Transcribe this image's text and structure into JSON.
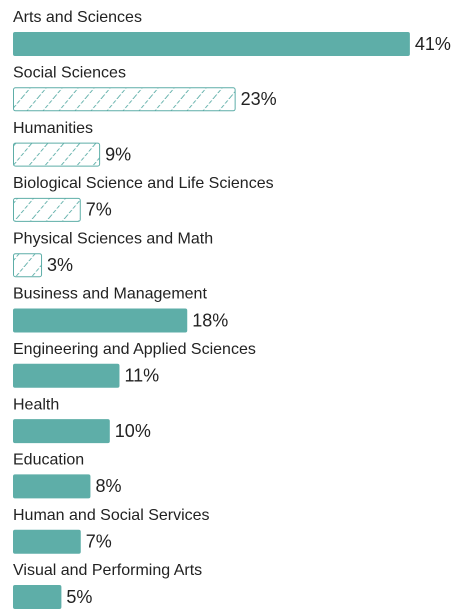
{
  "chart_data": {
    "type": "bar",
    "orientation": "horizontal",
    "categories": [
      "Arts and Sciences",
      "Social Sciences",
      "Humanities",
      "Biological Science and Life Sciences",
      "Physical Sciences and Math",
      "Business and Management",
      "Engineering and Applied Sciences",
      "Health",
      "Education",
      "Human and Social Services",
      "Visual and Performing Arts"
    ],
    "values": [
      41,
      23,
      9,
      7,
      3,
      18,
      11,
      10,
      8,
      7,
      5
    ],
    "value_labels": [
      "41%",
      "23%",
      "9%",
      "7%",
      "3%",
      "18%",
      "11%",
      "10%",
      "8%",
      "7%",
      "5%"
    ],
    "styles": [
      "solid",
      "hatched",
      "hatched",
      "hatched",
      "hatched",
      "solid",
      "solid",
      "solid",
      "solid",
      "solid",
      "solid"
    ],
    "color": "#5eaea8"
  }
}
